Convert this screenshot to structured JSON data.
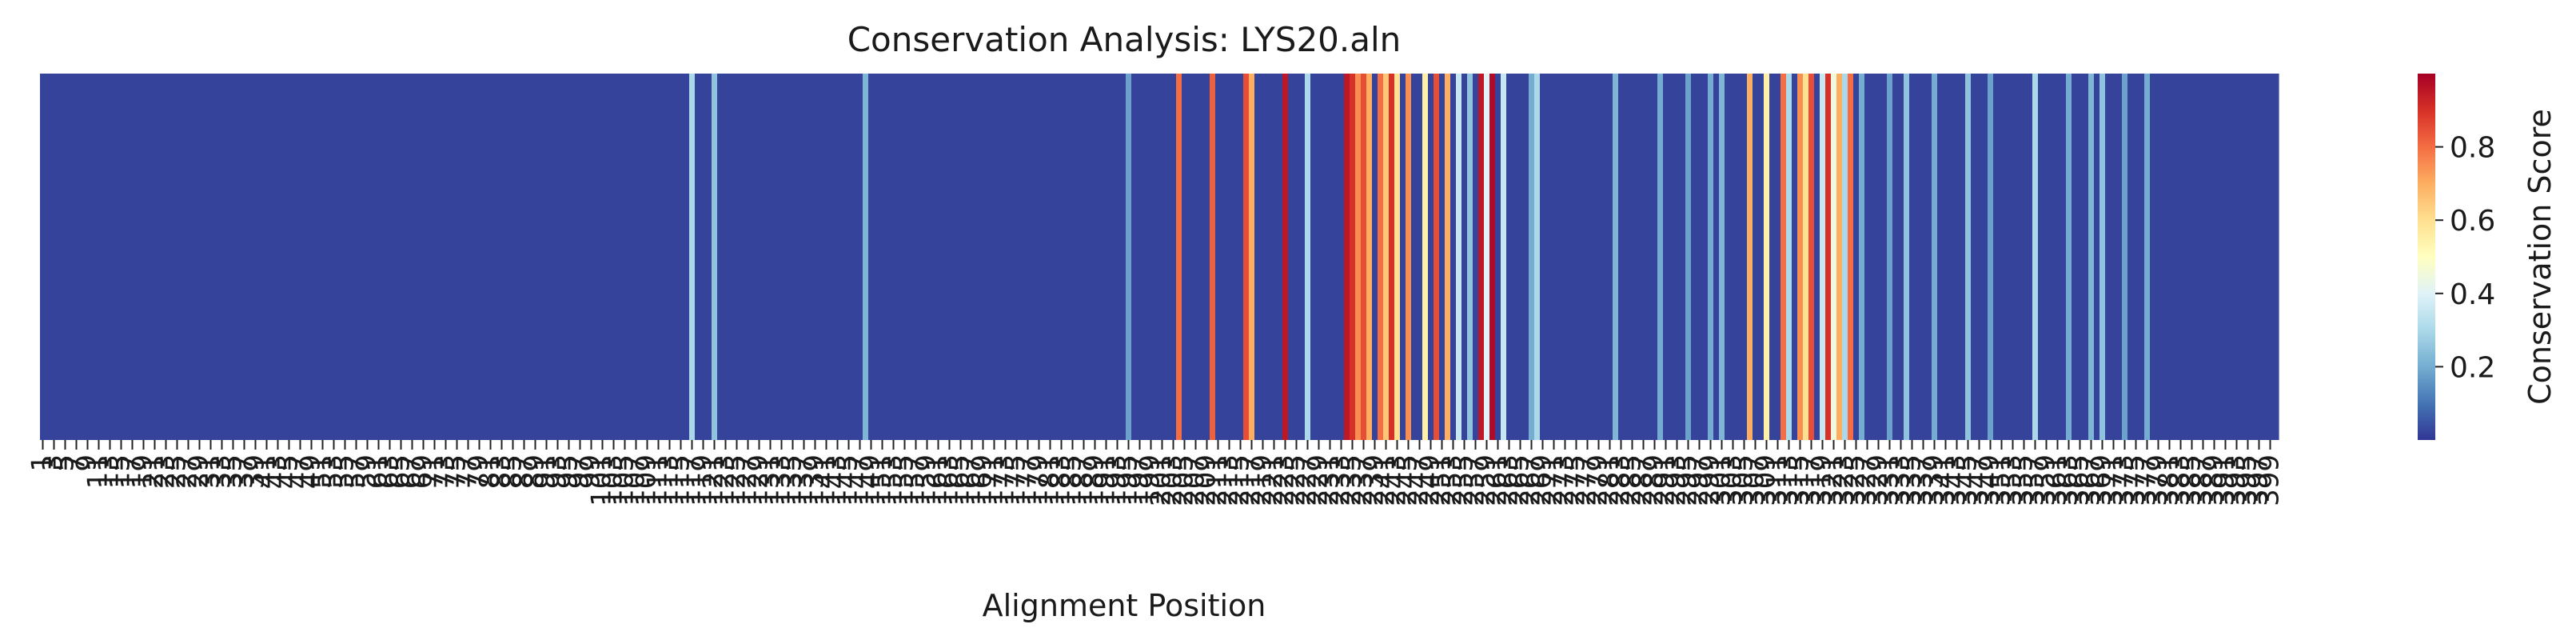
{
  "chart_data": {
    "type": "heatmap",
    "title": "Conservation Analysis: LYS20.aln",
    "xlabel": "Alignment Position",
    "ylabel": "",
    "colorbar": {
      "label": "Conservation Score",
      "ticks": [
        0.2,
        0.4,
        0.6,
        0.8
      ],
      "ticklabels": [
        "0.2",
        "0.4",
        "0.6",
        "0.8"
      ],
      "range": [
        0.0,
        1.0
      ],
      "colormap": "RdYlBu_r"
    },
    "x_tick_labels_visible": "overlapping rotated position labels (unreadable)",
    "n_positions": 400,
    "baseline_score": 0.02,
    "high_scores": [
      {
        "position": 116,
        "value": 0.3
      },
      {
        "position": 120,
        "value": 0.25
      },
      {
        "position": 147,
        "value": 0.22
      },
      {
        "position": 194,
        "value": 0.18
      },
      {
        "position": 203,
        "value": 0.8
      },
      {
        "position": 209,
        "value": 0.82
      },
      {
        "position": 215,
        "value": 0.85
      },
      {
        "position": 216,
        "value": 0.7
      },
      {
        "position": 222,
        "value": 0.95
      },
      {
        "position": 226,
        "value": 0.3
      },
      {
        "position": 233,
        "value": 0.95
      },
      {
        "position": 234,
        "value": 0.9
      },
      {
        "position": 235,
        "value": 0.75
      },
      {
        "position": 236,
        "value": 0.85
      },
      {
        "position": 237,
        "value": 0.7
      },
      {
        "position": 239,
        "value": 0.8
      },
      {
        "position": 240,
        "value": 0.65
      },
      {
        "position": 241,
        "value": 0.9
      },
      {
        "position": 242,
        "value": 0.6
      },
      {
        "position": 244,
        "value": 0.75
      },
      {
        "position": 247,
        "value": 0.55
      },
      {
        "position": 249,
        "value": 0.85
      },
      {
        "position": 251,
        "value": 0.7
      },
      {
        "position": 253,
        "value": 0.35
      },
      {
        "position": 255,
        "value": 0.25
      },
      {
        "position": 257,
        "value": 0.95
      },
      {
        "position": 258,
        "value": 0.4
      },
      {
        "position": 259,
        "value": 0.98
      },
      {
        "position": 261,
        "value": 0.35
      },
      {
        "position": 266,
        "value": 0.2
      },
      {
        "position": 267,
        "value": 0.3
      },
      {
        "position": 281,
        "value": 0.22
      },
      {
        "position": 289,
        "value": 0.2
      },
      {
        "position": 294,
        "value": 0.18
      },
      {
        "position": 298,
        "value": 0.2
      },
      {
        "position": 300,
        "value": 0.22
      },
      {
        "position": 305,
        "value": 0.7
      },
      {
        "position": 308,
        "value": 0.55
      },
      {
        "position": 311,
        "value": 0.8
      },
      {
        "position": 312,
        "value": 0.3
      },
      {
        "position": 314,
        "value": 0.75
      },
      {
        "position": 315,
        "value": 0.6
      },
      {
        "position": 316,
        "value": 0.85
      },
      {
        "position": 318,
        "value": 0.35
      },
      {
        "position": 319,
        "value": 0.9
      },
      {
        "position": 320,
        "value": 0.45
      },
      {
        "position": 321,
        "value": 0.7
      },
      {
        "position": 322,
        "value": 0.3
      },
      {
        "position": 323,
        "value": 0.8
      },
      {
        "position": 325,
        "value": 0.2
      },
      {
        "position": 330,
        "value": 0.18
      },
      {
        "position": 333,
        "value": 0.25
      },
      {
        "position": 338,
        "value": 0.2
      },
      {
        "position": 344,
        "value": 0.25
      },
      {
        "position": 348,
        "value": 0.18
      },
      {
        "position": 356,
        "value": 0.3
      },
      {
        "position": 362,
        "value": 0.2
      },
      {
        "position": 366,
        "value": 0.22
      },
      {
        "position": 368,
        "value": 0.25
      },
      {
        "position": 372,
        "value": 0.18
      },
      {
        "position": 376,
        "value": 0.2
      }
    ]
  }
}
